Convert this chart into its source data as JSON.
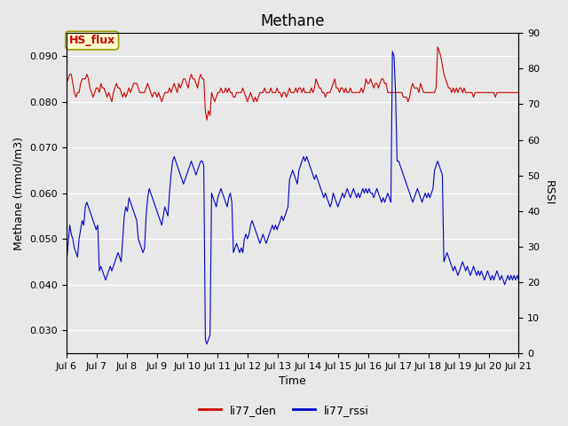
{
  "title": "Methane",
  "xlabel": "Time",
  "ylabel_left": "Methane (mmol/m3)",
  "ylabel_right": "RSSI",
  "ylim_left": [
    0.025,
    0.095
  ],
  "ylim_right": [
    0,
    90
  ],
  "xlim": [
    0,
    15
  ],
  "x_tick_labels": [
    "Jul 6",
    "Jul 7",
    "Jul 8",
    "Jul 9",
    "Jul 10",
    "Jul 11",
    "Jul 12",
    "Jul 13",
    "Jul 14",
    "Jul 15",
    "Jul 16",
    "Jul 17",
    "Jul 18",
    "Jul 19",
    "Jul 20",
    "Jul 21"
  ],
  "annotation_text": "HS_flux",
  "annotation_bgcolor": "#ffffcc",
  "annotation_edgecolor": "#999900",
  "background_color": "#e8e8e8",
  "plot_bg_color": "#e8e8e8",
  "grid_color": "#ffffff",
  "line_red_color": "#cc0000",
  "line_blue_color": "#0000cc",
  "legend_red": "li77_den",
  "legend_blue": "li77_rssi",
  "title_fontsize": 12,
  "axis_fontsize": 9,
  "tick_fontsize": 8,
  "red_y": [
    0.084,
    0.085,
    0.086,
    0.086,
    0.084,
    0.082,
    0.081,
    0.082,
    0.082,
    0.084,
    0.085,
    0.085,
    0.085,
    0.086,
    0.085,
    0.083,
    0.082,
    0.081,
    0.082,
    0.083,
    0.083,
    0.082,
    0.084,
    0.083,
    0.083,
    0.082,
    0.081,
    0.082,
    0.081,
    0.08,
    0.082,
    0.083,
    0.084,
    0.083,
    0.083,
    0.082,
    0.081,
    0.082,
    0.081,
    0.082,
    0.083,
    0.082,
    0.083,
    0.084,
    0.084,
    0.084,
    0.083,
    0.082,
    0.082,
    0.082,
    0.082,
    0.083,
    0.084,
    0.083,
    0.082,
    0.081,
    0.082,
    0.082,
    0.081,
    0.082,
    0.081,
    0.08,
    0.081,
    0.082,
    0.082,
    0.082,
    0.083,
    0.082,
    0.083,
    0.084,
    0.083,
    0.082,
    0.084,
    0.083,
    0.084,
    0.085,
    0.085,
    0.084,
    0.083,
    0.085,
    0.086,
    0.085,
    0.085,
    0.084,
    0.083,
    0.085,
    0.086,
    0.085,
    0.085,
    0.078,
    0.076,
    0.078,
    0.077,
    0.082,
    0.081,
    0.08,
    0.081,
    0.082,
    0.082,
    0.083,
    0.082,
    0.082,
    0.083,
    0.082,
    0.083,
    0.082,
    0.082,
    0.081,
    0.081,
    0.082,
    0.082,
    0.082,
    0.082,
    0.083,
    0.082,
    0.081,
    0.08,
    0.081,
    0.082,
    0.081,
    0.08,
    0.081,
    0.08,
    0.081,
    0.082,
    0.082,
    0.082,
    0.083,
    0.082,
    0.082,
    0.082,
    0.083,
    0.082,
    0.082,
    0.082,
    0.083,
    0.082,
    0.082,
    0.081,
    0.082,
    0.082,
    0.081,
    0.082,
    0.083,
    0.082,
    0.082,
    0.082,
    0.083,
    0.082,
    0.083,
    0.083,
    0.082,
    0.083,
    0.082,
    0.082,
    0.082,
    0.082,
    0.083,
    0.082,
    0.083,
    0.085,
    0.084,
    0.083,
    0.083,
    0.082,
    0.082,
    0.081,
    0.082,
    0.082,
    0.082,
    0.083,
    0.084,
    0.085,
    0.083,
    0.083,
    0.082,
    0.083,
    0.083,
    0.082,
    0.083,
    0.082,
    0.082,
    0.083,
    0.082,
    0.082,
    0.082,
    0.082,
    0.082,
    0.082,
    0.083,
    0.082,
    0.083,
    0.085,
    0.084,
    0.084,
    0.085,
    0.084,
    0.083,
    0.084,
    0.084,
    0.083,
    0.084,
    0.085,
    0.085,
    0.084,
    0.084,
    0.082,
    0.082,
    0.082,
    0.082,
    0.082,
    0.082,
    0.082,
    0.082,
    0.082,
    0.082,
    0.081,
    0.081,
    0.081,
    0.08,
    0.081,
    0.083,
    0.084,
    0.083,
    0.083,
    0.083,
    0.082,
    0.084,
    0.083,
    0.082,
    0.082,
    0.082,
    0.082,
    0.082,
    0.082,
    0.082,
    0.082,
    0.083,
    0.092,
    0.091,
    0.09,
    0.088,
    0.086,
    0.085,
    0.084,
    0.083,
    0.083,
    0.082,
    0.083,
    0.082,
    0.083,
    0.082,
    0.083,
    0.083,
    0.082,
    0.083,
    0.082,
    0.082,
    0.082,
    0.082,
    0.082,
    0.081,
    0.082,
    0.082,
    0.082,
    0.082,
    0.082,
    0.082,
    0.082,
    0.082,
    0.082,
    0.082,
    0.082,
    0.082,
    0.082,
    0.081,
    0.082,
    0.082,
    0.082,
    0.082,
    0.082,
    0.082,
    0.082,
    0.082,
    0.082,
    0.082,
    0.082,
    0.082,
    0.082,
    0.082,
    0.082
  ],
  "blue_y": [
    0.045,
    0.049,
    0.053,
    0.051,
    0.05,
    0.048,
    0.047,
    0.046,
    0.05,
    0.052,
    0.054,
    0.053,
    0.057,
    0.058,
    0.057,
    0.056,
    0.055,
    0.054,
    0.053,
    0.052,
    0.053,
    0.043,
    0.044,
    0.043,
    0.042,
    0.041,
    0.042,
    0.043,
    0.044,
    0.043,
    0.044,
    0.045,
    0.046,
    0.047,
    0.046,
    0.045,
    0.05,
    0.055,
    0.057,
    0.056,
    0.059,
    0.058,
    0.057,
    0.056,
    0.055,
    0.054,
    0.05,
    0.049,
    0.048,
    0.047,
    0.048,
    0.055,
    0.059,
    0.061,
    0.06,
    0.059,
    0.058,
    0.057,
    0.056,
    0.055,
    0.054,
    0.053,
    0.055,
    0.057,
    0.056,
    0.055,
    0.06,
    0.064,
    0.067,
    0.068,
    0.067,
    0.066,
    0.065,
    0.064,
    0.063,
    0.062,
    0.063,
    0.064,
    0.065,
    0.066,
    0.067,
    0.066,
    0.065,
    0.064,
    0.065,
    0.066,
    0.067,
    0.067,
    0.066,
    0.028,
    0.027,
    0.028,
    0.029,
    0.06,
    0.059,
    0.058,
    0.057,
    0.059,
    0.06,
    0.061,
    0.06,
    0.059,
    0.058,
    0.057,
    0.059,
    0.06,
    0.058,
    0.047,
    0.048,
    0.049,
    0.048,
    0.047,
    0.048,
    0.047,
    0.05,
    0.051,
    0.05,
    0.051,
    0.053,
    0.054,
    0.053,
    0.052,
    0.051,
    0.05,
    0.049,
    0.05,
    0.051,
    0.05,
    0.049,
    0.05,
    0.051,
    0.052,
    0.053,
    0.052,
    0.053,
    0.052,
    0.053,
    0.054,
    0.055,
    0.054,
    0.055,
    0.056,
    0.057,
    0.063,
    0.064,
    0.065,
    0.064,
    0.063,
    0.062,
    0.065,
    0.066,
    0.067,
    0.068,
    0.067,
    0.068,
    0.067,
    0.066,
    0.065,
    0.064,
    0.063,
    0.064,
    0.063,
    0.062,
    0.061,
    0.06,
    0.059,
    0.06,
    0.059,
    0.058,
    0.057,
    0.058,
    0.06,
    0.059,
    0.058,
    0.057,
    0.058,
    0.059,
    0.06,
    0.059,
    0.06,
    0.061,
    0.06,
    0.059,
    0.06,
    0.061,
    0.06,
    0.059,
    0.06,
    0.059,
    0.06,
    0.061,
    0.06,
    0.061,
    0.06,
    0.061,
    0.06,
    0.06,
    0.059,
    0.06,
    0.061,
    0.06,
    0.059,
    0.058,
    0.059,
    0.058,
    0.059,
    0.06,
    0.059,
    0.058,
    0.091,
    0.09,
    0.082,
    0.067,
    0.067,
    0.066,
    0.065,
    0.064,
    0.063,
    0.062,
    0.061,
    0.06,
    0.059,
    0.058,
    0.059,
    0.06,
    0.061,
    0.06,
    0.059,
    0.058,
    0.059,
    0.06,
    0.059,
    0.06,
    0.059,
    0.06,
    0.061,
    0.065,
    0.066,
    0.067,
    0.066,
    0.065,
    0.064,
    0.045,
    0.046,
    0.047,
    0.046,
    0.045,
    0.044,
    0.043,
    0.044,
    0.043,
    0.042,
    0.043,
    0.044,
    0.045,
    0.044,
    0.043,
    0.044,
    0.043,
    0.042,
    0.043,
    0.044,
    0.043,
    0.042,
    0.043,
    0.042,
    0.043,
    0.042,
    0.041,
    0.042,
    0.043,
    0.042,
    0.041,
    0.042,
    0.041,
    0.042,
    0.043,
    0.042,
    0.041,
    0.042,
    0.041,
    0.04,
    0.041,
    0.042,
    0.041,
    0.042,
    0.041,
    0.042,
    0.041,
    0.042,
    0.041
  ]
}
